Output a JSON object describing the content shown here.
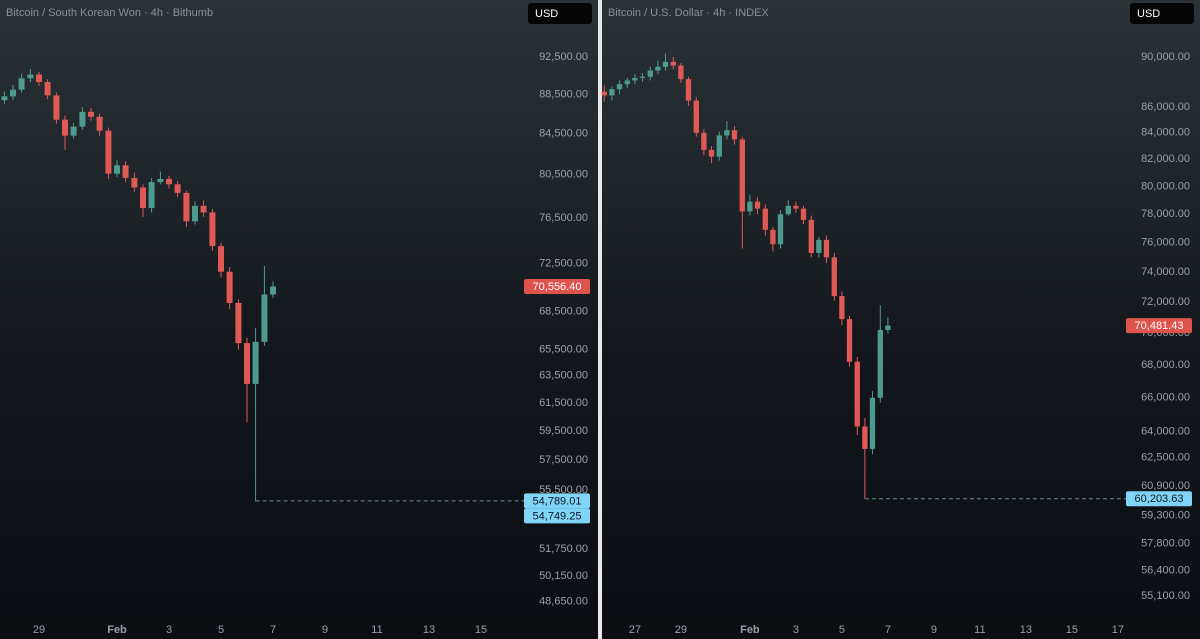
{
  "chart_data": [
    {
      "type": "candlestick",
      "title": "Bitcoin / South Korean Won · 4h · Bithumb",
      "currency": "USD",
      "x": [
        -3.33,
        -3,
        -2.67,
        -2.33,
        -2,
        -1.67,
        -1.33,
        -1,
        -0.67,
        -0.33,
        0,
        0.33,
        0.67,
        1,
        1.33,
        1.67,
        2,
        2.33,
        2.67,
        3,
        3.33,
        3.67,
        4,
        4.33,
        4.67,
        5,
        5.33,
        5.67,
        6,
        6.33,
        6.67,
        7
      ],
      "open": [
        87900,
        88300,
        89000,
        90200,
        90600,
        89800,
        88400,
        85900,
        84300,
        85200,
        86700,
        86200,
        84800,
        80600,
        81400,
        80200,
        79300,
        77400,
        79800,
        80100,
        79600,
        78800,
        76200,
        77600,
        77000,
        74000,
        71800,
        69200,
        66000,
        62900,
        66100,
        69900
      ],
      "high": [
        88800,
        89500,
        90700,
        91200,
        90900,
        90100,
        88700,
        86300,
        85600,
        87200,
        87100,
        86500,
        85100,
        81900,
        81800,
        80700,
        79600,
        80200,
        80800,
        80400,
        79900,
        79000,
        78000,
        78100,
        77300,
        74300,
        72200,
        69500,
        66400,
        67200,
        72300,
        71000
      ],
      "low": [
        87500,
        87900,
        88700,
        89800,
        89400,
        88000,
        85500,
        82900,
        84000,
        84900,
        85800,
        84300,
        80100,
        80300,
        79800,
        78900,
        76600,
        77000,
        79600,
        79200,
        78400,
        75700,
        75900,
        76600,
        73600,
        71300,
        68700,
        65500,
        60100,
        54749.25,
        65800,
        69600
      ],
      "close": [
        88300,
        89000,
        90200,
        90600,
        89800,
        88400,
        85900,
        84300,
        85200,
        86700,
        86200,
        84800,
        80600,
        81400,
        80200,
        79300,
        77400,
        79800,
        80100,
        79600,
        78800,
        76200,
        77600,
        77000,
        74000,
        71800,
        69200,
        66000,
        62900,
        66100,
        69900,
        70556.4
      ],
      "colors": {
        "up": "#4f9a8f",
        "down": "#df5a55"
      },
      "log_scale": true,
      "ylim": [
        48060,
        98930
      ],
      "yticks": [
        {
          "value": 92500,
          "label": "92,500.00"
        },
        {
          "value": 88500,
          "label": "88,500.00"
        },
        {
          "value": 84500,
          "label": "84,500.00"
        },
        {
          "value": 80500,
          "label": "80,500.00"
        },
        {
          "value": 76500,
          "label": "76,500.00"
        },
        {
          "value": 72500,
          "label": "72,500.00"
        },
        {
          "value": 68500,
          "label": "68,500.00"
        },
        {
          "value": 65500,
          "label": "65,500.00"
        },
        {
          "value": 63500,
          "label": "63,500.00"
        },
        {
          "value": 61500,
          "label": "61,500.00"
        },
        {
          "value": 59500,
          "label": "59,500.00"
        },
        {
          "value": 57500,
          "label": "57,500.00"
        },
        {
          "value": 55500,
          "label": "55,500.00"
        },
        {
          "value": 51750,
          "label": "51,750.00"
        },
        {
          "value": 50150,
          "label": "50,150.00"
        },
        {
          "value": 48650,
          "label": "48,650.00"
        }
      ],
      "xlim": [
        -3.5,
        19.5
      ],
      "xticks": [
        {
          "value": -2,
          "label": "29"
        },
        {
          "value": 1,
          "label": "Feb"
        },
        3,
        5,
        7,
        9,
        11,
        13,
        15
      ],
      "price_labels": [
        {
          "value": 70556.4,
          "label": "70,556.40",
          "color": "#df534d"
        },
        {
          "value": 54789.01,
          "label": "54,789.01",
          "color": "#80d4f8",
          "dashed": true
        },
        {
          "value": 54749.25,
          "label": "54,749.25",
          "color": "#80d4f8"
        }
      ]
    },
    {
      "type": "candlestick",
      "title": "Bitcoin / U.S. Dollar · 4h · INDEX",
      "currency": "USD",
      "x": [
        -5.33,
        -5,
        -4.67,
        -4.33,
        -4,
        -3.67,
        -3.33,
        -3,
        -2.67,
        -2.33,
        -2,
        -1.67,
        -1.33,
        -1,
        -0.67,
        -0.33,
        0,
        0.33,
        0.67,
        1,
        1.33,
        1.67,
        2,
        2.33,
        2.67,
        3,
        3.33,
        3.67,
        4,
        4.33,
        4.67,
        5,
        5.33,
        5.67,
        6,
        6.33,
        6.67,
        7
      ],
      "open": [
        87200,
        86900,
        87400,
        87800,
        88100,
        88300,
        88400,
        88900,
        89200,
        89600,
        89300,
        88200,
        86500,
        84000,
        82700,
        82200,
        83800,
        84200,
        83500,
        78200,
        78900,
        78400,
        76900,
        75900,
        78000,
        78600,
        78400,
        77600,
        75300,
        76200,
        75000,
        72400,
        70900,
        68200,
        64300,
        63000,
        66000,
        70200
      ],
      "high": [
        87700,
        87600,
        88100,
        88300,
        88600,
        88700,
        89200,
        89700,
        90300,
        90000,
        89500,
        88400,
        86800,
        84300,
        83000,
        84100,
        84900,
        84500,
        83700,
        79400,
        79200,
        78700,
        77100,
        78300,
        79000,
        78900,
        78600,
        77900,
        76400,
        76500,
        75300,
        72700,
        71100,
        68500,
        64800,
        66400,
        71800,
        71000
      ],
      "low": [
        86400,
        86500,
        87000,
        87500,
        87800,
        88000,
        88100,
        88600,
        88900,
        89000,
        87900,
        86100,
        83700,
        82300,
        81700,
        81900,
        83500,
        83100,
        75600,
        77900,
        78000,
        76500,
        75400,
        75600,
        77900,
        78100,
        77300,
        75000,
        75000,
        74600,
        72100,
        70500,
        67900,
        63800,
        60203.63,
        62700,
        65700,
        70000
      ],
      "close": [
        86900,
        87400,
        87800,
        88100,
        88300,
        88400,
        88900,
        89200,
        89600,
        89300,
        88200,
        86500,
        84000,
        82700,
        82200,
        83800,
        84200,
        83500,
        78200,
        78900,
        78400,
        76900,
        75900,
        78000,
        78600,
        78400,
        77600,
        75300,
        76200,
        75000,
        72400,
        70900,
        68200,
        64300,
        63000,
        66000,
        70200,
        70481.43
      ],
      "colors": {
        "up": "#4f9a8f",
        "down": "#df5a55"
      },
      "log_scale": true,
      "ylim": [
        54310,
        94790
      ],
      "yticks": [
        {
          "value": 90000,
          "label": "90,000.00"
        },
        {
          "value": 86000,
          "label": "86,000.00"
        },
        {
          "value": 84000,
          "label": "84,000.00"
        },
        {
          "value": 82000,
          "label": "82,000.00"
        },
        {
          "value": 80000,
          "label": "80,000.00"
        },
        {
          "value": 78000,
          "label": "78,000.00"
        },
        {
          "value": 76000,
          "label": "76,000.00"
        },
        {
          "value": 74000,
          "label": "74,000.00"
        },
        {
          "value": 72000,
          "label": "72,000.00"
        },
        {
          "value": 70000,
          "label": "70,000.00"
        },
        {
          "value": 68000,
          "label": "68,000.00"
        },
        {
          "value": 66000,
          "label": "66,000.00"
        },
        {
          "value": 64000,
          "label": "64,000.00"
        },
        {
          "value": 62500,
          "label": "62,500.00"
        },
        {
          "value": 60900,
          "label": "60,900.00"
        },
        {
          "value": 59300,
          "label": "59,300.00"
        },
        {
          "value": 57800,
          "label": "57,800.00"
        },
        {
          "value": 56400,
          "label": "56,400.00"
        },
        {
          "value": 55100,
          "label": "55,100.00"
        }
      ],
      "xlim": [
        -5.43,
        20.57
      ],
      "xticks": [
        {
          "value": -4,
          "label": "27"
        },
        {
          "value": -2,
          "label": "29"
        },
        {
          "value": 1,
          "label": "Feb"
        },
        3,
        5,
        7,
        9,
        11,
        13,
        15,
        17
      ],
      "price_labels": [
        {
          "value": 70481.43,
          "label": "70,481.43",
          "color": "#df534d"
        },
        {
          "value": 60203.63,
          "label": "60,203.63",
          "color": "#80d4f8",
          "dashed": true
        }
      ]
    }
  ]
}
